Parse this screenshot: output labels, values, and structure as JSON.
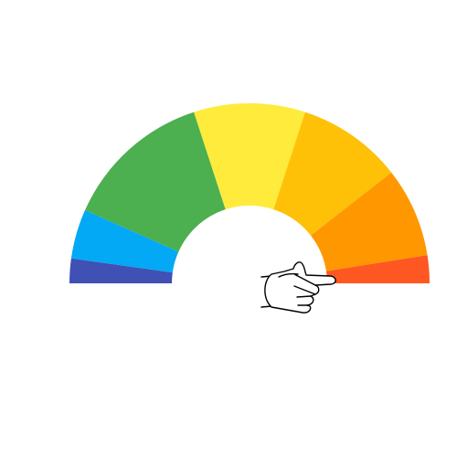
{
  "gauge": {
    "segment_colors": [
      "#3F51B5",
      "#03A9F4",
      "#4CAF50",
      "#FFEB3B",
      "#FFC107",
      "#FF9800",
      "#FF5722"
    ],
    "segment_spans_deg": [
      8,
      16,
      48,
      36,
      34,
      29,
      9
    ],
    "pointer_level": 1.0,
    "pointer_icon": "pointing-hand-icon"
  }
}
